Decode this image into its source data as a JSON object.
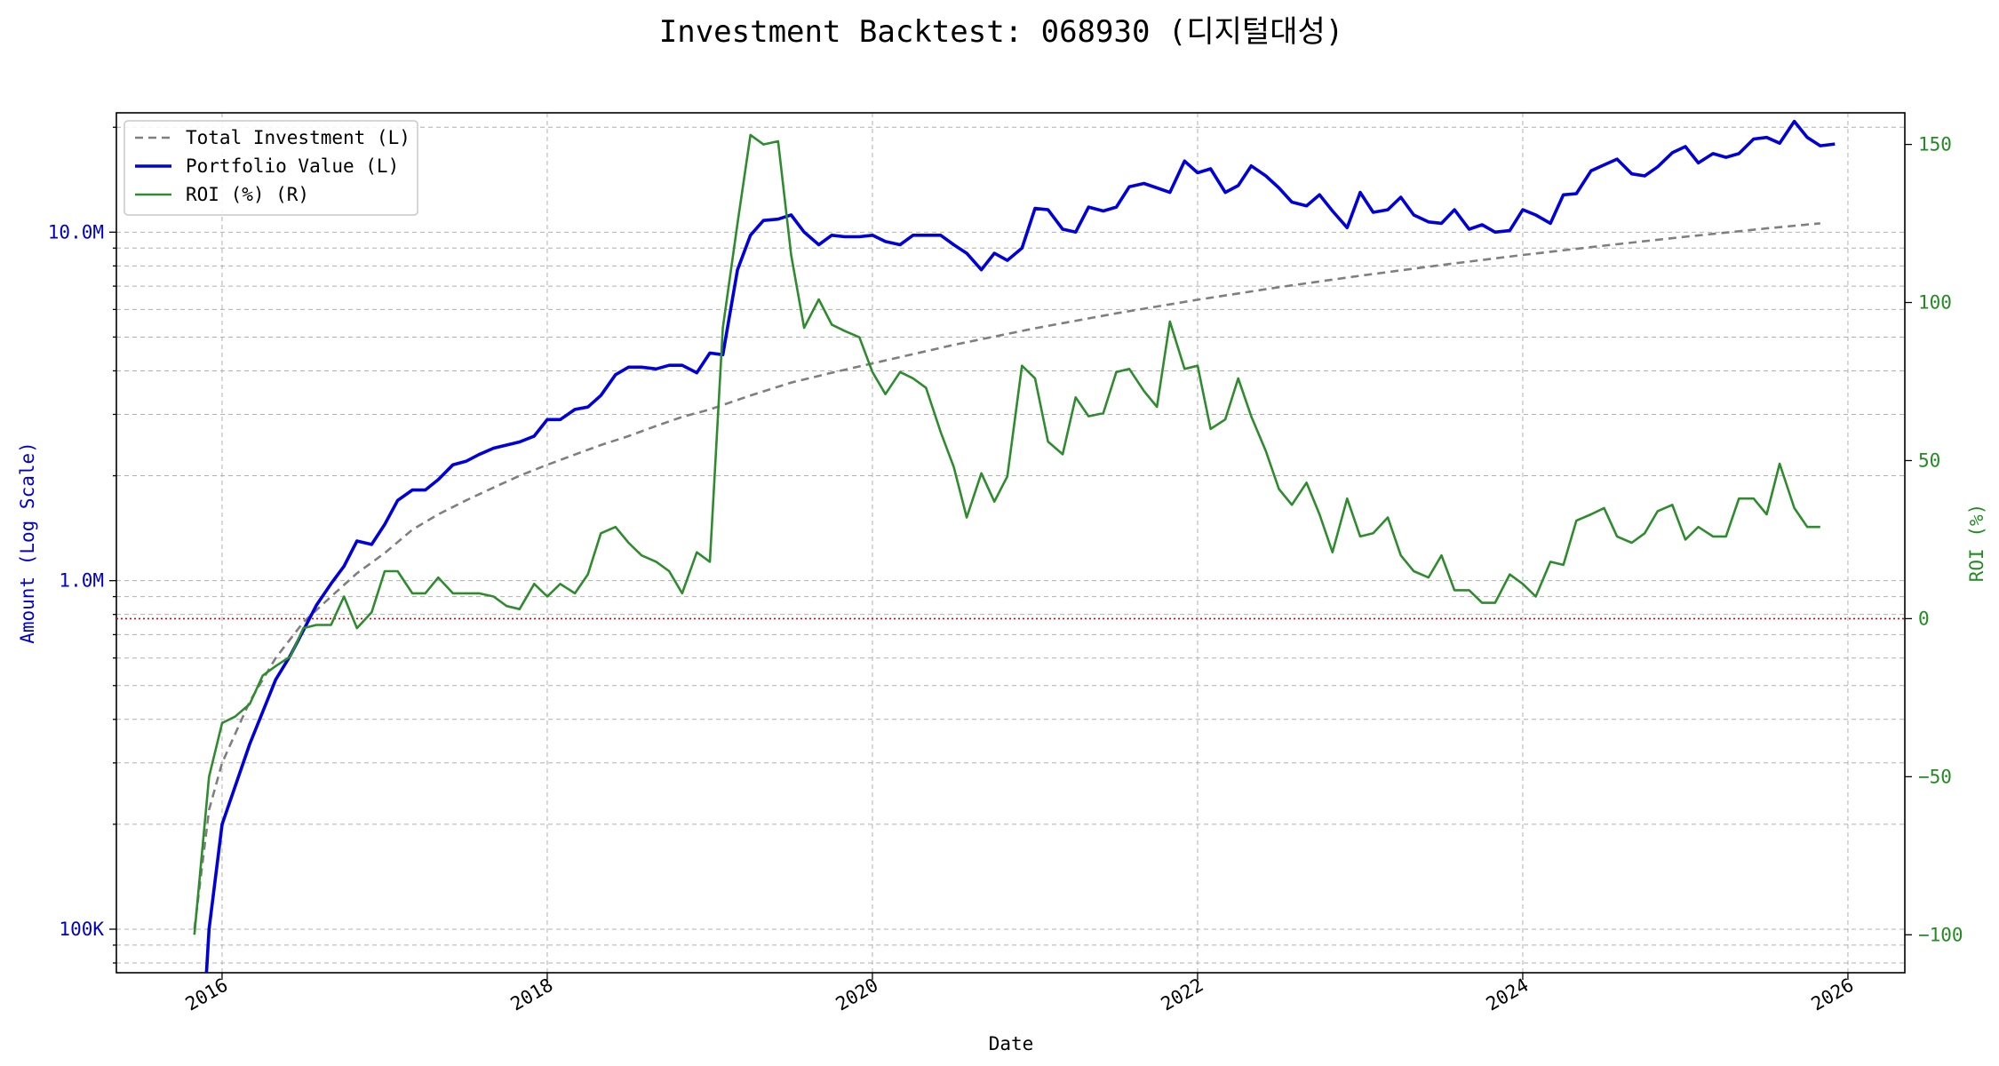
{
  "chart_data": {
    "type": "line",
    "title": "Investment Backtest: 068930 (디지털대성)",
    "xlabel": "Date",
    "ylabel_left": "Amount (Log Scale)",
    "ylabel_right": "ROI (%)",
    "left_scale": "log",
    "left_ylim": [
      75000,
      22000000
    ],
    "right_ylim": [
      -112,
      160
    ],
    "xlim": [
      2015.35,
      2026.35
    ],
    "grid": true,
    "legend_position": "top-left",
    "x_ticks": [
      2016,
      2018,
      2020,
      2022,
      2024,
      2026
    ],
    "x_tick_labels": [
      "2016",
      "2018",
      "2020",
      "2022",
      "2024",
      "2026"
    ],
    "left_ticks": [
      100000,
      1000000,
      10000000
    ],
    "left_tick_labels": [
      "100K",
      "1.0M",
      "10.0M"
    ],
    "right_ticks": [
      -100,
      -50,
      0,
      50,
      100,
      150
    ],
    "right_tick_labels": [
      "−100",
      "−50",
      "0",
      "50",
      "100",
      "150"
    ],
    "colors": {
      "total_investment": "#7f7f7f",
      "portfolio_value": "#0000dd",
      "roi": "#2e8b2e",
      "zero_line": "#dd0000",
      "left_axis_text": "#0000cc",
      "right_axis_text": "#228b22",
      "grid": "#b0b0b0"
    },
    "series": [
      {
        "name": "Total Investment (L)",
        "axis": "left",
        "style": "dashed",
        "points": [
          [
            2015.83,
            100000
          ],
          [
            2015.92,
            220000
          ],
          [
            2016.0,
            300000
          ],
          [
            2016.17,
            450000
          ],
          [
            2016.33,
            600000
          ],
          [
            2016.5,
            760000
          ],
          [
            2016.67,
            900000
          ],
          [
            2016.83,
            1050000
          ],
          [
            2017.0,
            1200000
          ],
          [
            2017.17,
            1400000
          ],
          [
            2017.33,
            1550000
          ],
          [
            2017.5,
            1700000
          ],
          [
            2017.67,
            1850000
          ],
          [
            2017.83,
            2000000
          ],
          [
            2018.0,
            2150000
          ],
          [
            2018.17,
            2300000
          ],
          [
            2018.33,
            2450000
          ],
          [
            2018.5,
            2600000
          ],
          [
            2018.67,
            2780000
          ],
          [
            2018.83,
            2950000
          ],
          [
            2019.0,
            3100000
          ],
          [
            2019.25,
            3400000
          ],
          [
            2019.5,
            3700000
          ],
          [
            2019.75,
            3950000
          ],
          [
            2020.0,
            4200000
          ],
          [
            2020.5,
            4750000
          ],
          [
            2021.0,
            5300000
          ],
          [
            2021.5,
            5850000
          ],
          [
            2022.0,
            6400000
          ],
          [
            2022.5,
            6950000
          ],
          [
            2023.0,
            7500000
          ],
          [
            2023.5,
            8050000
          ],
          [
            2024.0,
            8600000
          ],
          [
            2024.5,
            9150000
          ],
          [
            2025.0,
            9700000
          ],
          [
            2025.5,
            10250000
          ],
          [
            2025.83,
            10600000
          ]
        ]
      },
      {
        "name": "Portfolio Value (L)",
        "axis": "left",
        "style": "solid",
        "points": [
          [
            2015.9,
            70000
          ],
          [
            2015.92,
            100000
          ],
          [
            2016.0,
            200000
          ],
          [
            2016.17,
            340000
          ],
          [
            2016.33,
            520000
          ],
          [
            2016.42,
            610000
          ],
          [
            2016.5,
            720000
          ],
          [
            2016.58,
            850000
          ],
          [
            2016.67,
            980000
          ],
          [
            2016.75,
            1100000
          ],
          [
            2016.83,
            1300000
          ],
          [
            2016.92,
            1270000
          ],
          [
            2017.0,
            1450000
          ],
          [
            2017.08,
            1700000
          ],
          [
            2017.17,
            1820000
          ],
          [
            2017.25,
            1820000
          ],
          [
            2017.33,
            1950000
          ],
          [
            2017.42,
            2150000
          ],
          [
            2017.5,
            2200000
          ],
          [
            2017.58,
            2300000
          ],
          [
            2017.67,
            2400000
          ],
          [
            2017.75,
            2450000
          ],
          [
            2017.83,
            2500000
          ],
          [
            2017.92,
            2600000
          ],
          [
            2018.0,
            2900000
          ],
          [
            2018.08,
            2900000
          ],
          [
            2018.17,
            3100000
          ],
          [
            2018.25,
            3150000
          ],
          [
            2018.33,
            3400000
          ],
          [
            2018.42,
            3900000
          ],
          [
            2018.5,
            4100000
          ],
          [
            2018.58,
            4100000
          ],
          [
            2018.67,
            4050000
          ],
          [
            2018.75,
            4150000
          ],
          [
            2018.83,
            4150000
          ],
          [
            2018.92,
            3950000
          ],
          [
            2019.0,
            4500000
          ],
          [
            2019.08,
            4450000
          ],
          [
            2019.17,
            7800000
          ],
          [
            2019.25,
            9800000
          ],
          [
            2019.33,
            10800000
          ],
          [
            2019.42,
            10900000
          ],
          [
            2019.5,
            11200000
          ],
          [
            2019.58,
            10000000
          ],
          [
            2019.67,
            9200000
          ],
          [
            2019.75,
            9800000
          ],
          [
            2019.83,
            9700000
          ],
          [
            2019.92,
            9700000
          ],
          [
            2020.0,
            9800000
          ],
          [
            2020.08,
            9400000
          ],
          [
            2020.17,
            9200000
          ],
          [
            2020.25,
            9800000
          ],
          [
            2020.33,
            9800000
          ],
          [
            2020.42,
            9800000
          ],
          [
            2020.5,
            9200000
          ],
          [
            2020.58,
            8700000
          ],
          [
            2020.67,
            7800000
          ],
          [
            2020.75,
            8700000
          ],
          [
            2020.83,
            8300000
          ],
          [
            2020.92,
            9000000
          ],
          [
            2021.0,
            11700000
          ],
          [
            2021.08,
            11600000
          ],
          [
            2021.17,
            10200000
          ],
          [
            2021.25,
            10000000
          ],
          [
            2021.33,
            11800000
          ],
          [
            2021.42,
            11500000
          ],
          [
            2021.5,
            11800000
          ],
          [
            2021.58,
            13500000
          ],
          [
            2021.67,
            13800000
          ],
          [
            2021.75,
            13400000
          ],
          [
            2021.83,
            13000000
          ],
          [
            2021.92,
            16000000
          ],
          [
            2022.0,
            14800000
          ],
          [
            2022.08,
            15200000
          ],
          [
            2022.17,
            13000000
          ],
          [
            2022.25,
            13600000
          ],
          [
            2022.33,
            15500000
          ],
          [
            2022.42,
            14500000
          ],
          [
            2022.5,
            13400000
          ],
          [
            2022.58,
            12200000
          ],
          [
            2022.67,
            11900000
          ],
          [
            2022.75,
            12800000
          ],
          [
            2022.83,
            11500000
          ],
          [
            2022.92,
            10300000
          ],
          [
            2023.0,
            13000000
          ],
          [
            2023.08,
            11400000
          ],
          [
            2023.17,
            11600000
          ],
          [
            2023.25,
            12600000
          ],
          [
            2023.33,
            11200000
          ],
          [
            2023.42,
            10700000
          ],
          [
            2023.5,
            10600000
          ],
          [
            2023.58,
            11600000
          ],
          [
            2023.67,
            10200000
          ],
          [
            2023.75,
            10500000
          ],
          [
            2023.83,
            10000000
          ],
          [
            2023.92,
            10100000
          ],
          [
            2024.0,
            11600000
          ],
          [
            2024.08,
            11200000
          ],
          [
            2024.17,
            10600000
          ],
          [
            2024.25,
            12800000
          ],
          [
            2024.33,
            12900000
          ],
          [
            2024.42,
            15000000
          ],
          [
            2024.5,
            15600000
          ],
          [
            2024.58,
            16200000
          ],
          [
            2024.67,
            14700000
          ],
          [
            2024.75,
            14500000
          ],
          [
            2024.83,
            15400000
          ],
          [
            2024.92,
            16900000
          ],
          [
            2025.0,
            17600000
          ],
          [
            2025.08,
            15800000
          ],
          [
            2025.17,
            16800000
          ],
          [
            2025.25,
            16400000
          ],
          [
            2025.33,
            16800000
          ],
          [
            2025.42,
            18500000
          ],
          [
            2025.5,
            18700000
          ],
          [
            2025.58,
            18000000
          ],
          [
            2025.67,
            20800000
          ],
          [
            2025.75,
            18700000
          ],
          [
            2025.83,
            17700000
          ],
          [
            2025.92,
            17900000
          ]
        ]
      },
      {
        "name": "ROI (%) (R)",
        "axis": "right",
        "style": "solid",
        "points": [
          [
            2015.83,
            -100
          ],
          [
            2015.92,
            -50
          ],
          [
            2016.0,
            -33
          ],
          [
            2016.08,
            -31
          ],
          [
            2016.17,
            -27
          ],
          [
            2016.25,
            -18
          ],
          [
            2016.33,
            -15
          ],
          [
            2016.42,
            -12
          ],
          [
            2016.5,
            -3
          ],
          [
            2016.58,
            -2
          ],
          [
            2016.67,
            -2
          ],
          [
            2016.75,
            7
          ],
          [
            2016.83,
            -3
          ],
          [
            2016.92,
            2
          ],
          [
            2017.0,
            15
          ],
          [
            2017.08,
            15
          ],
          [
            2017.17,
            8
          ],
          [
            2017.25,
            8
          ],
          [
            2017.33,
            13
          ],
          [
            2017.42,
            8
          ],
          [
            2017.5,
            8
          ],
          [
            2017.58,
            8
          ],
          [
            2017.67,
            7
          ],
          [
            2017.75,
            4
          ],
          [
            2017.83,
            3
          ],
          [
            2017.92,
            11
          ],
          [
            2018.0,
            7
          ],
          [
            2018.08,
            11
          ],
          [
            2018.17,
            8
          ],
          [
            2018.25,
            14
          ],
          [
            2018.33,
            27
          ],
          [
            2018.42,
            29
          ],
          [
            2018.5,
            24
          ],
          [
            2018.58,
            20
          ],
          [
            2018.67,
            18
          ],
          [
            2018.75,
            15
          ],
          [
            2018.83,
            8
          ],
          [
            2018.92,
            21
          ],
          [
            2019.0,
            18
          ],
          [
            2019.08,
            92
          ],
          [
            2019.17,
            125
          ],
          [
            2019.25,
            153
          ],
          [
            2019.33,
            150
          ],
          [
            2019.42,
            151
          ],
          [
            2019.5,
            115
          ],
          [
            2019.58,
            92
          ],
          [
            2019.67,
            101
          ],
          [
            2019.75,
            93
          ],
          [
            2019.83,
            91
          ],
          [
            2019.92,
            89
          ],
          [
            2020.0,
            78
          ],
          [
            2020.08,
            71
          ],
          [
            2020.17,
            78
          ],
          [
            2020.25,
            76
          ],
          [
            2020.33,
            73
          ],
          [
            2020.42,
            59
          ],
          [
            2020.5,
            48
          ],
          [
            2020.58,
            32
          ],
          [
            2020.67,
            46
          ],
          [
            2020.75,
            37
          ],
          [
            2020.83,
            45
          ],
          [
            2020.92,
            80
          ],
          [
            2021.0,
            76
          ],
          [
            2021.08,
            56
          ],
          [
            2021.17,
            52
          ],
          [
            2021.25,
            70
          ],
          [
            2021.33,
            64
          ],
          [
            2021.42,
            65
          ],
          [
            2021.5,
            78
          ],
          [
            2021.58,
            79
          ],
          [
            2021.67,
            72
          ],
          [
            2021.75,
            67
          ],
          [
            2021.83,
            94
          ],
          [
            2021.92,
            79
          ],
          [
            2022.0,
            80
          ],
          [
            2022.08,
            60
          ],
          [
            2022.17,
            63
          ],
          [
            2022.25,
            76
          ],
          [
            2022.33,
            64
          ],
          [
            2022.42,
            53
          ],
          [
            2022.5,
            41
          ],
          [
            2022.58,
            36
          ],
          [
            2022.67,
            43
          ],
          [
            2022.75,
            33
          ],
          [
            2022.83,
            21
          ],
          [
            2022.92,
            38
          ],
          [
            2023.0,
            26
          ],
          [
            2023.08,
            27
          ],
          [
            2023.17,
            32
          ],
          [
            2023.25,
            20
          ],
          [
            2023.33,
            15
          ],
          [
            2023.42,
            13
          ],
          [
            2023.5,
            20
          ],
          [
            2023.58,
            9
          ],
          [
            2023.67,
            9
          ],
          [
            2023.75,
            5
          ],
          [
            2023.83,
            5
          ],
          [
            2023.92,
            14
          ],
          [
            2024.0,
            11
          ],
          [
            2024.08,
            7
          ],
          [
            2024.17,
            18
          ],
          [
            2024.25,
            17
          ],
          [
            2024.33,
            31
          ],
          [
            2024.42,
            33
          ],
          [
            2024.5,
            35
          ],
          [
            2024.58,
            26
          ],
          [
            2024.67,
            24
          ],
          [
            2024.75,
            27
          ],
          [
            2024.83,
            34
          ],
          [
            2024.92,
            36
          ],
          [
            2025.0,
            25
          ],
          [
            2025.08,
            29
          ],
          [
            2025.17,
            26
          ],
          [
            2025.25,
            26
          ],
          [
            2025.33,
            38
          ],
          [
            2025.42,
            38
          ],
          [
            2025.5,
            33
          ],
          [
            2025.58,
            49
          ],
          [
            2025.67,
            35
          ],
          [
            2025.75,
            29
          ],
          [
            2025.83,
            29
          ]
        ]
      }
    ],
    "reference_lines": [
      {
        "axis": "right",
        "value": 0,
        "style": "dotted"
      }
    ]
  }
}
